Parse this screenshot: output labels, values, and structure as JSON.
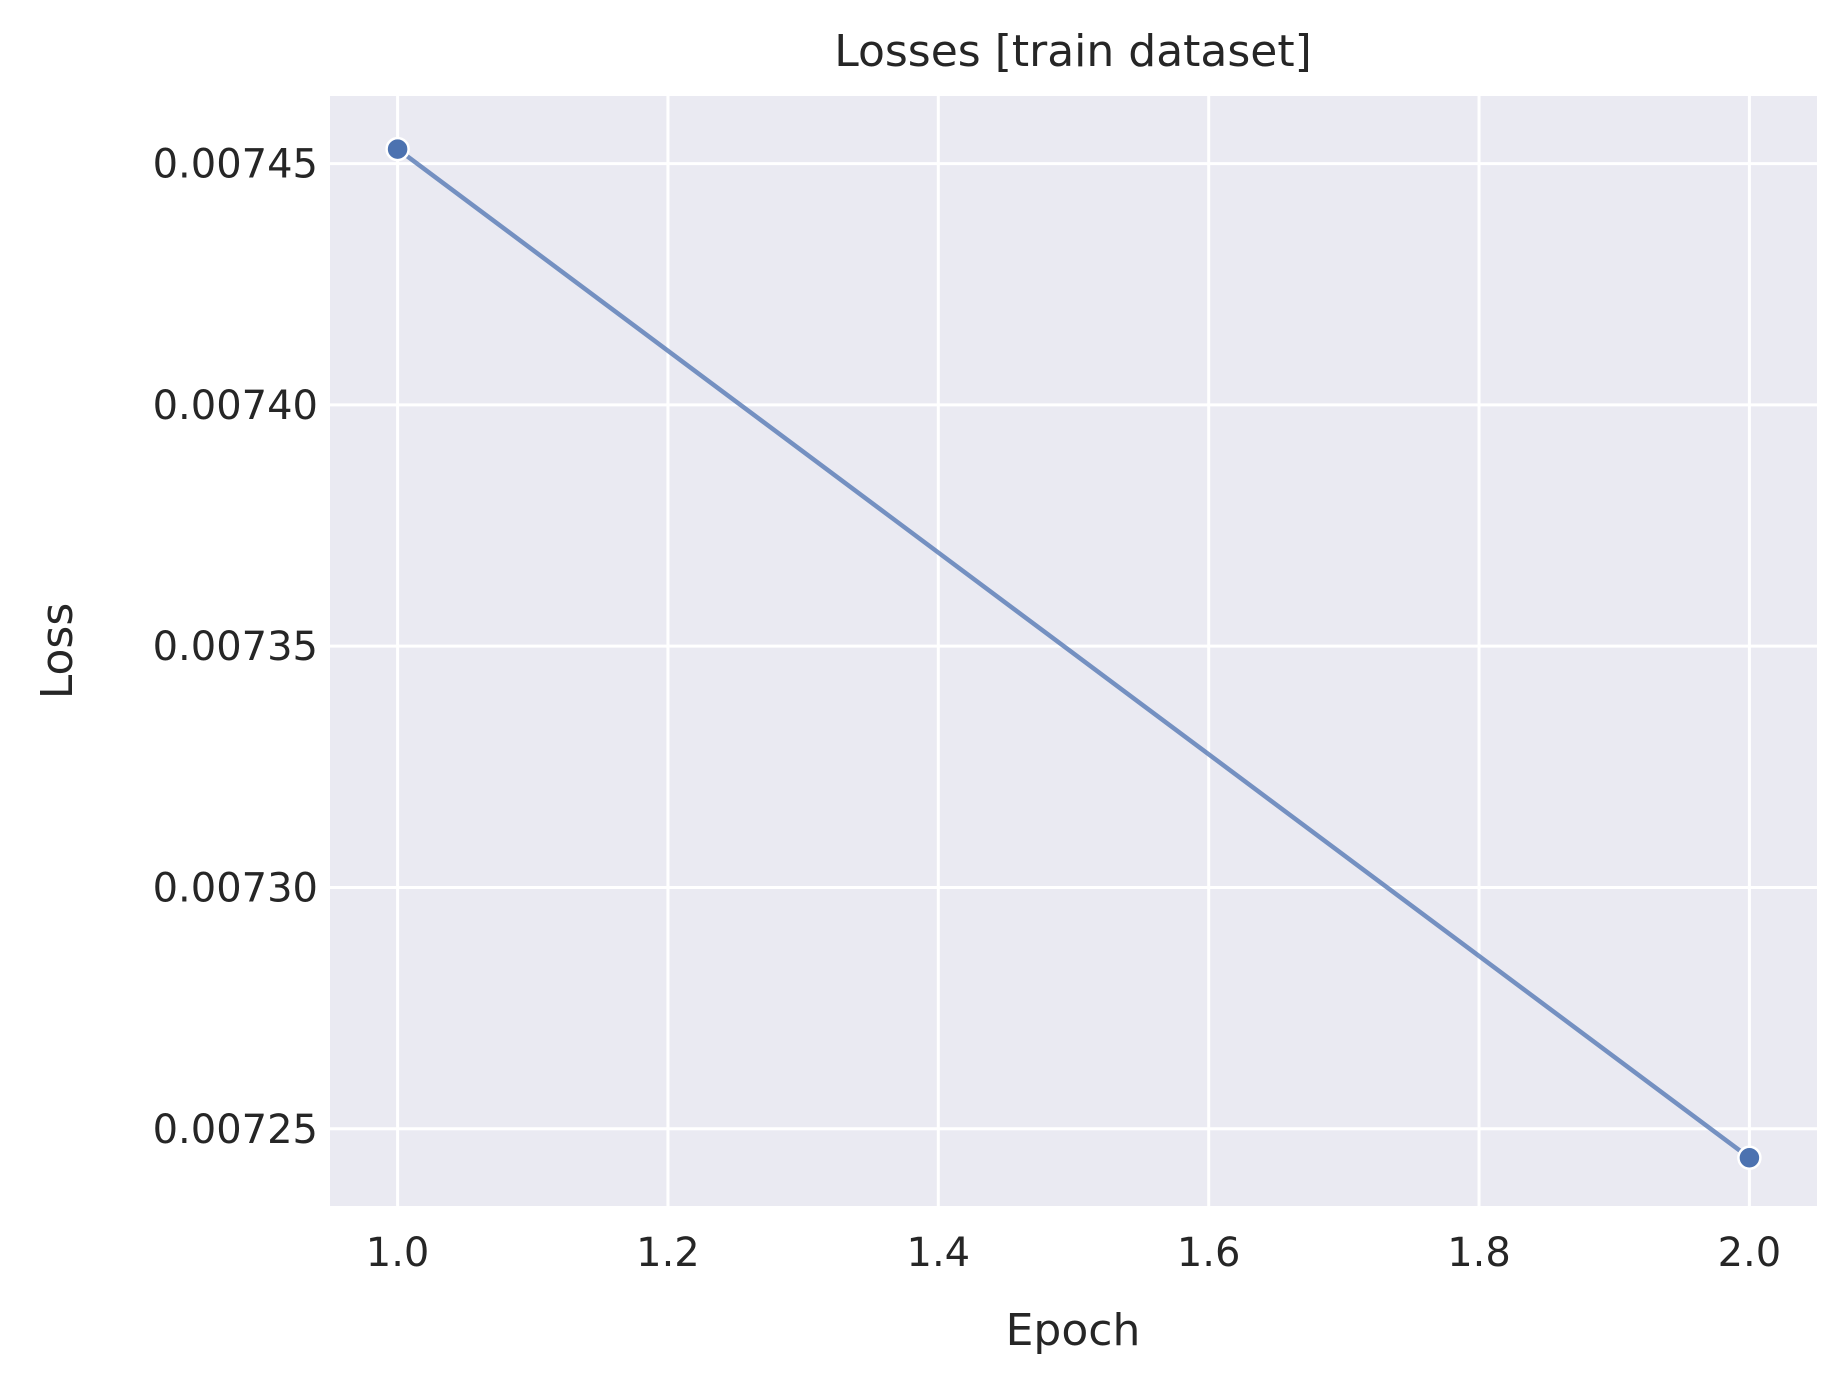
{
  "chart_data": {
    "type": "line",
    "title": "Losses [train dataset]",
    "xlabel": "Epoch",
    "ylabel": "Loss",
    "xlim": [
      0.95,
      2.05
    ],
    "ylim": [
      0.007234,
      0.007464
    ],
    "x_ticks": [
      1.0,
      1.2,
      1.4,
      1.6,
      1.8,
      2.0
    ],
    "x_tick_labels": [
      "1.0",
      "1.2",
      "1.4",
      "1.6",
      "1.8",
      "2.0"
    ],
    "y_ticks": [
      0.00725,
      0.0073,
      0.00735,
      0.0074,
      0.00745
    ],
    "y_tick_labels": [
      "0.00725",
      "0.00730",
      "0.00735",
      "0.00740",
      "0.00745"
    ],
    "grid": true,
    "legend": "none",
    "series": [
      {
        "x": [
          1.0,
          2.0
        ],
        "y": [
          0.007453,
          0.007244
        ],
        "color": "#4c72b0",
        "marker": "circle"
      }
    ],
    "colors": {
      "plot_background": "#eaeaf2",
      "grid": "#ffffff",
      "text": "#262626"
    }
  }
}
